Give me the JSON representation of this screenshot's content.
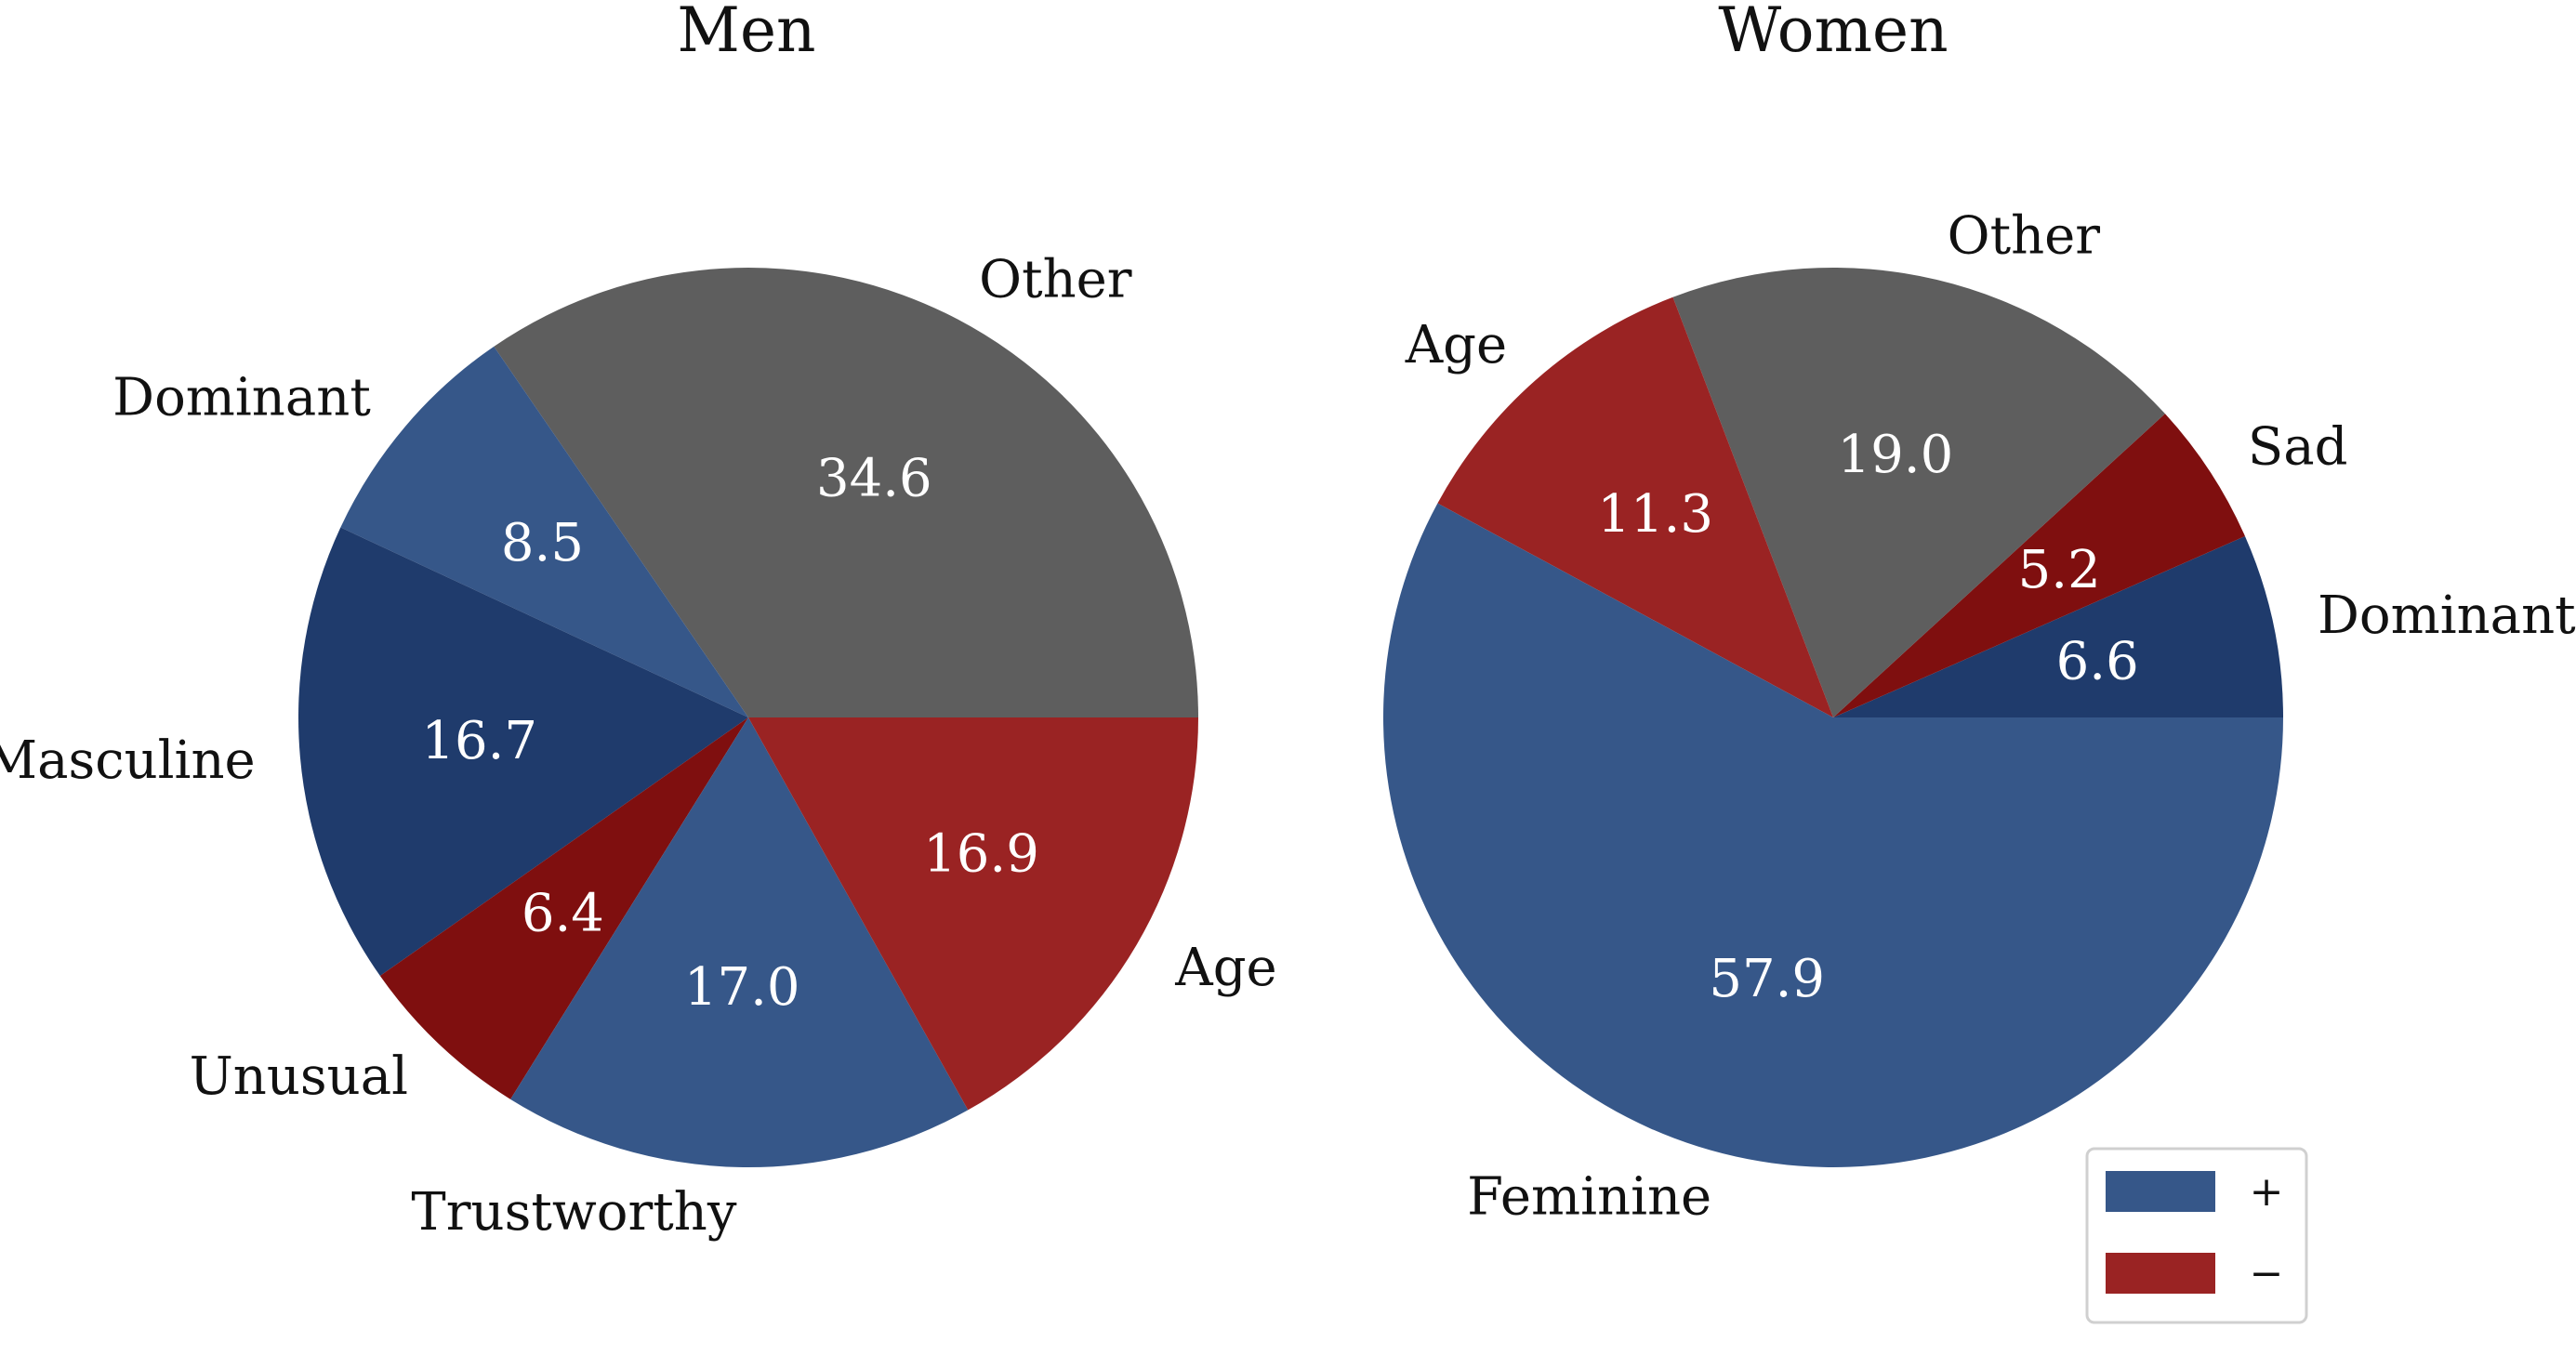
{
  "chart_data": [
    {
      "type": "pie",
      "title": "Men",
      "slices": [
        {
          "label": "Other",
          "value": 34.6,
          "color": "#5e5e5e"
        },
        {
          "label": "Dominant",
          "value": 8.5,
          "color": "#365789"
        },
        {
          "label": "Masculine",
          "value": 16.7,
          "color": "#1f3b6c"
        },
        {
          "label": "Unusual",
          "value": 6.4,
          "color": "#7f0f0f"
        },
        {
          "label": "Trustworthy",
          "value": 17.0,
          "color": "#365789"
        },
        {
          "label": "Age",
          "value": 16.9,
          "color": "#9a2323"
        }
      ]
    },
    {
      "type": "pie",
      "title": "Women",
      "slices": [
        {
          "label": "Dominant",
          "value": 6.6,
          "color": "#1f3b6c"
        },
        {
          "label": "Sad",
          "value": 5.2,
          "color": "#7f0f0f"
        },
        {
          "label": "Other",
          "value": 19.0,
          "color": "#5e5e5e"
        },
        {
          "label": "Age",
          "value": 11.3,
          "color": "#9a2323"
        },
        {
          "label": "Feminine",
          "value": 57.9,
          "color": "#365789"
        }
      ]
    }
  ],
  "legend": {
    "placement": "bottom-right",
    "items": [
      {
        "label": "+",
        "color": "#365789"
      },
      {
        "label": "−",
        "color": "#9a2323"
      }
    ]
  }
}
